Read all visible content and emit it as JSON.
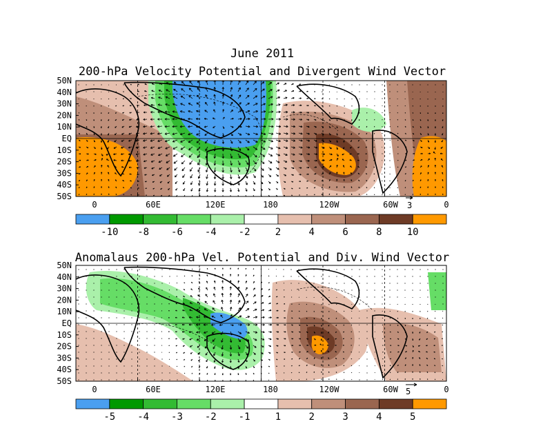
{
  "header": {
    "month": "June 2011",
    "top_title": "200-hPa Velocity Potential and Divergent Wind Vector",
    "bottom_title": "Anomalaus 200-hPa Vel. Potential and Div. Wind Vector"
  },
  "axes": {
    "lat_labels": [
      "50N",
      "40N",
      "30N",
      "20N",
      "10N",
      "EQ",
      "10S",
      "20S",
      "30S",
      "40S",
      "50S"
    ],
    "lon_labels": [
      "0",
      "60E",
      "120E",
      "180",
      "120W",
      "60W",
      "0"
    ]
  },
  "top_panel": {
    "ref_vector_label": "3",
    "colorbar_labels": [
      "-10",
      "-8",
      "-6",
      "-4",
      "-2",
      "2",
      "4",
      "6",
      "8",
      "10"
    ],
    "colors": [
      "#4a9ff0",
      "#009900",
      "#33bb33",
      "#66dd66",
      "#aaf0aa",
      "#ffffff",
      "#e6bfae",
      "#bf8f7a",
      "#9a6650",
      "#6e3b26",
      "#ff9900"
    ]
  },
  "bottom_panel": {
    "ref_vector_label": "5",
    "colorbar_labels": [
      "-5",
      "-4",
      "-3",
      "-2",
      "-1",
      "1",
      "2",
      "3",
      "4",
      "5"
    ],
    "colors": [
      "#4a9ff0",
      "#009900",
      "#33bb33",
      "#66dd66",
      "#aaf0aa",
      "#ffffff",
      "#e6bfae",
      "#bf8f7a",
      "#9a6650",
      "#6e3b26",
      "#ff9900"
    ]
  }
}
